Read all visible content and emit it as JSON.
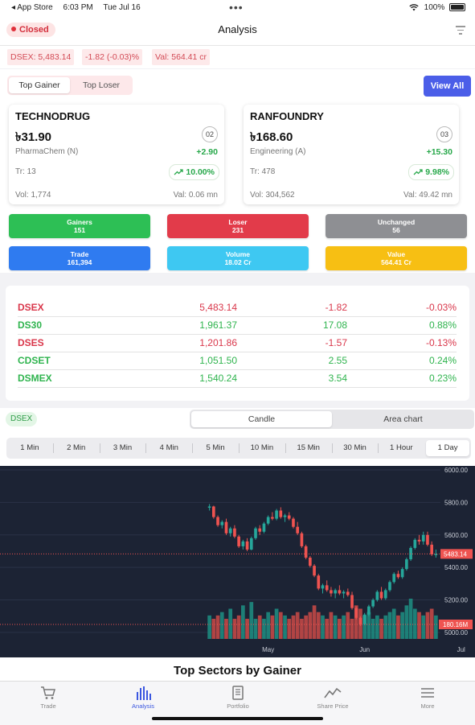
{
  "status_bar": {
    "back_app": "◂ App Store",
    "time": "6:03 PM",
    "date": "Tue Jul 16",
    "dots": "•••",
    "battery": "100%"
  },
  "header": {
    "status_label": "Closed",
    "title": "Analysis"
  },
  "ticker_bar": {
    "index": "DSEX: 5,483.14",
    "change": "-1.82 (-0.03)%",
    "value": "Val: 564.41 cr"
  },
  "movers": {
    "tabs": [
      "Top Gainer",
      "Top Loser"
    ],
    "active_tab": 0,
    "view_all": "View All",
    "cards": [
      {
        "name": "TECHNODRUG",
        "price": "৳31.90",
        "rank": "02",
        "sector": "PharmaChem (N)",
        "change": "+2.90",
        "trades": "Tr: 13",
        "percent": "10.00%",
        "volume": "Vol: 1,774",
        "value": "Val: 0.06 mn"
      },
      {
        "name": "RANFOUNDRY",
        "price": "৳168.60",
        "rank": "03",
        "sector": "Engineering (A)",
        "change": "+15.30",
        "trades": "Tr: 478",
        "percent": "9.98%",
        "volume": "Vol: 304,562",
        "value": "Val: 49.42 mn"
      }
    ]
  },
  "market_stats": [
    {
      "label": "Gainers",
      "value": "151",
      "color": "#2dbf55"
    },
    {
      "label": "Loser",
      "value": "231",
      "color": "#e23b4a"
    },
    {
      "label": "Unchanged",
      "value": "56",
      "color": "#8e8f93"
    },
    {
      "label": "Trade",
      "value": "161,394",
      "color": "#2f7bf0"
    },
    {
      "label": "Volume",
      "value": "18.02 Cr",
      "color": "#3ec8f2"
    },
    {
      "label": "Value",
      "value": "564.41 Cr",
      "color": "#f7bf13"
    }
  ],
  "indices": [
    {
      "name": "DSEX",
      "value": "5,483.14",
      "change": "-1.82",
      "percent": "-0.03%",
      "trend": "down"
    },
    {
      "name": "DS30",
      "value": "1,961.37",
      "change": "17.08",
      "percent": "0.88%",
      "trend": "up"
    },
    {
      "name": "DSES",
      "value": "1,201.86",
      "change": "-1.57",
      "percent": "-0.13%",
      "trend": "down"
    },
    {
      "name": "CDSET",
      "value": "1,051.50",
      "change": "2.55",
      "percent": "0.24%",
      "trend": "up"
    },
    {
      "name": "DSMEX",
      "value": "1,540.24",
      "change": "3.54",
      "percent": "0.23%",
      "trend": "up"
    }
  ],
  "chart_controls": {
    "symbol": "DSEX",
    "chart_types": [
      "Candle",
      "Area chart"
    ],
    "active_chart_type": 0,
    "timeframes": [
      "1 Min",
      "2 Min",
      "3 Min",
      "4 Min",
      "5 Min",
      "10 Min",
      "15 Min",
      "30 Min",
      "1 Hour",
      "1 Day"
    ],
    "active_timeframe": 9
  },
  "chart_data": {
    "type": "candlestick",
    "y_ticks": [
      5000,
      5200,
      5400,
      5600,
      5800,
      6000
    ],
    "y_tick_labels": [
      "5000.00",
      "5200.00",
      "5400.00",
      "5600.00",
      "5800.00",
      "6000.00"
    ],
    "ylim": [
      4960,
      6010
    ],
    "x_labels": [
      {
        "label": "May",
        "index": 14
      },
      {
        "label": "Jun",
        "index": 37
      },
      {
        "label": "Jul",
        "index": 60
      }
    ],
    "last_price": 5483.14,
    "last_price_label": "5483.14",
    "volume_label": "180.16M",
    "up_color": "#26a69a",
    "down_color": "#ef5350",
    "candles": [
      [
        5770,
        5790,
        5750,
        5775
      ],
      [
        5775,
        5780,
        5700,
        5710
      ],
      [
        5710,
        5720,
        5650,
        5660
      ],
      [
        5660,
        5690,
        5640,
        5680
      ],
      [
        5680,
        5700,
        5600,
        5610
      ],
      [
        5610,
        5650,
        5590,
        5640
      ],
      [
        5640,
        5660,
        5580,
        5590
      ],
      [
        5590,
        5600,
        5520,
        5530
      ],
      [
        5530,
        5570,
        5510,
        5560
      ],
      [
        5560,
        5580,
        5500,
        5510
      ],
      [
        5510,
        5590,
        5505,
        5580
      ],
      [
        5580,
        5650,
        5570,
        5640
      ],
      [
        5640,
        5660,
        5600,
        5620
      ],
      [
        5620,
        5680,
        5610,
        5670
      ],
      [
        5670,
        5720,
        5660,
        5710
      ],
      [
        5710,
        5740,
        5690,
        5700
      ],
      [
        5700,
        5760,
        5690,
        5750
      ],
      [
        5750,
        5770,
        5700,
        5710
      ],
      [
        5710,
        5730,
        5680,
        5720
      ],
      [
        5720,
        5740,
        5690,
        5700
      ],
      [
        5700,
        5710,
        5640,
        5650
      ],
      [
        5650,
        5680,
        5600,
        5610
      ],
      [
        5610,
        5620,
        5520,
        5530
      ],
      [
        5530,
        5540,
        5450,
        5460
      ],
      [
        5460,
        5470,
        5400,
        5410
      ],
      [
        5410,
        5420,
        5340,
        5350
      ],
      [
        5350,
        5360,
        5260,
        5270
      ],
      [
        5270,
        5300,
        5240,
        5290
      ],
      [
        5290,
        5320,
        5250,
        5260
      ],
      [
        5260,
        5280,
        5220,
        5240
      ],
      [
        5240,
        5270,
        5210,
        5260
      ],
      [
        5260,
        5290,
        5230,
        5240
      ],
      [
        5240,
        5260,
        5210,
        5250
      ],
      [
        5250,
        5270,
        5220,
        5230
      ],
      [
        5230,
        5250,
        5140,
        5150
      ],
      [
        5150,
        5160,
        5080,
        5090
      ],
      [
        5090,
        5100,
        5040,
        5050
      ],
      [
        5050,
        5120,
        5045,
        5110
      ],
      [
        5110,
        5170,
        5100,
        5160
      ],
      [
        5160,
        5210,
        5150,
        5200
      ],
      [
        5200,
        5260,
        5190,
        5250
      ],
      [
        5250,
        5280,
        5200,
        5210
      ],
      [
        5210,
        5270,
        5200,
        5260
      ],
      [
        5260,
        5320,
        5250,
        5310
      ],
      [
        5310,
        5370,
        5300,
        5360
      ],
      [
        5360,
        5380,
        5330,
        5340
      ],
      [
        5340,
        5400,
        5330,
        5390
      ],
      [
        5390,
        5460,
        5380,
        5450
      ],
      [
        5450,
        5530,
        5440,
        5520
      ],
      [
        5520,
        5580,
        5510,
        5570
      ],
      [
        5570,
        5600,
        5540,
        5560
      ],
      [
        5560,
        5620,
        5540,
        5600
      ],
      [
        5600,
        5620,
        5530,
        5540
      ],
      [
        5540,
        5560,
        5470,
        5480
      ],
      [
        5480,
        5510,
        5460,
        5483
      ]
    ],
    "volumes": [
      7,
      6,
      7,
      8,
      6,
      9,
      6,
      7,
      10,
      6,
      11,
      6,
      7,
      6,
      8,
      7,
      9,
      8,
      7,
      6,
      7,
      8,
      6,
      7,
      8,
      10,
      8,
      7,
      6,
      8,
      7,
      6,
      7,
      8,
      6,
      10,
      9,
      7,
      8,
      6,
      7,
      6,
      7,
      8,
      9,
      7,
      8,
      10,
      12,
      9,
      8,
      7,
      8,
      9,
      7
    ]
  },
  "section_title": "Top Sectors by Gainer",
  "tab_bar": [
    {
      "label": "Trade",
      "icon": "cart-icon",
      "active": false
    },
    {
      "label": "Analysis",
      "icon": "bar-chart-icon",
      "active": true
    },
    {
      "label": "Portfolio",
      "icon": "document-icon",
      "active": false
    },
    {
      "label": "Share Price",
      "icon": "trend-line-icon",
      "active": false
    },
    {
      "label": "More",
      "icon": "menu-icon",
      "active": false
    }
  ]
}
